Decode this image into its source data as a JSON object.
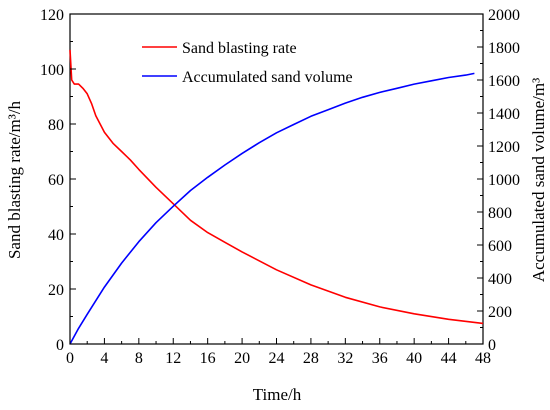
{
  "chart_data": {
    "type": "line",
    "xlabel": "Time/h",
    "ylabel_left": "Sand blasting rate/m³/h",
    "ylabel_right": "Accumulated sand volume/m³",
    "xlim": [
      0,
      48
    ],
    "ylim_left": [
      0,
      120
    ],
    "ylim_right": [
      0,
      2000
    ],
    "x_ticks": [
      "0",
      "4",
      "8",
      "12",
      "16",
      "20",
      "24",
      "28",
      "32",
      "36",
      "40",
      "44",
      "48"
    ],
    "y_left_ticks": [
      "0",
      "20",
      "40",
      "60",
      "80",
      "100",
      "120"
    ],
    "y_right_ticks": [
      "0",
      "200",
      "400",
      "600",
      "800",
      "1000",
      "1200",
      "1400",
      "1600",
      "1800",
      "2000"
    ],
    "grid": false,
    "legend_position": "top-center",
    "series": [
      {
        "name": "Sand blasting rate",
        "axis": "left",
        "color": "#ff0000",
        "x": [
          0,
          0.2,
          0.5,
          1,
          1.5,
          2,
          2.5,
          3,
          4,
          5,
          6,
          7,
          8,
          10,
          12,
          14,
          16,
          18,
          20,
          24,
          28,
          32,
          36,
          40,
          44,
          48
        ],
        "y": [
          107,
          96,
          94.5,
          94.5,
          93,
          91,
          87.5,
          83,
          77,
          73,
          70,
          67,
          63.5,
          57,
          51,
          45,
          40.5,
          37,
          33.5,
          27,
          21.5,
          17,
          13.5,
          11,
          9,
          7.5
        ]
      },
      {
        "name": "Accumulated sand volume",
        "axis": "right",
        "color": "#0000ff",
        "x": [
          0,
          1,
          2,
          4,
          6,
          8,
          10,
          12,
          14,
          16,
          18,
          20,
          22,
          24,
          26,
          28,
          30,
          32,
          34,
          36,
          38,
          40,
          42,
          44,
          46,
          47
        ],
        "y": [
          0,
          95,
          180,
          345,
          490,
          620,
          735,
          835,
          930,
          1010,
          1085,
          1155,
          1220,
          1280,
          1330,
          1380,
          1420,
          1460,
          1495,
          1525,
          1550,
          1575,
          1595,
          1615,
          1630,
          1640
        ]
      }
    ]
  }
}
